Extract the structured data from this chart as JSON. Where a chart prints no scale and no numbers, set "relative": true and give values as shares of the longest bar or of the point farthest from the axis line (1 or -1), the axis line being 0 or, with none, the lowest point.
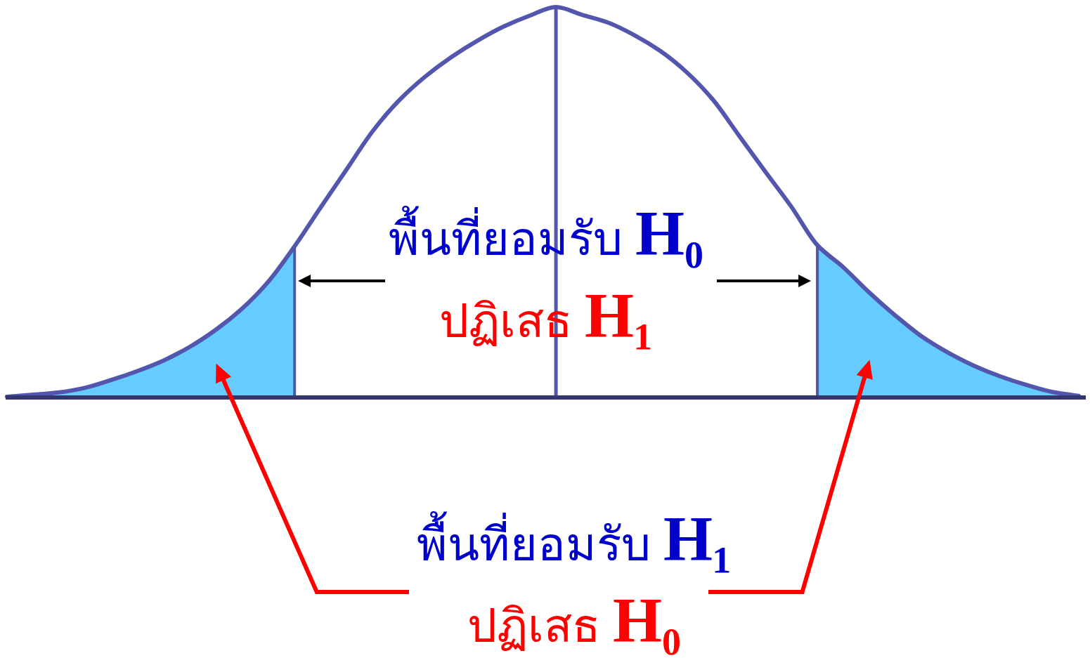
{
  "chart_data": {
    "type": "line",
    "relative": true,
    "categories": [
      null,
      null,
      null,
      null,
      null,
      null,
      null,
      null,
      null,
      null,
      null,
      null,
      null,
      null,
      null,
      null,
      null,
      null,
      null,
      null,
      null,
      null,
      null,
      null,
      null,
      null,
      null,
      null,
      null,
      null,
      null,
      null,
      null,
      null,
      null,
      null,
      null,
      null,
      null,
      null,
      null,
      null
    ],
    "series": [
      {
        "color": "#5356ad",
        "values": [
          0.002,
          0.007,
          0.013,
          0.025,
          0.045,
          0.068,
          0.095,
          0.13,
          0.174,
          0.228,
          0.297,
          0.387,
          0.487,
          0.585,
          0.683,
          0.761,
          0.822,
          0.872,
          0.914,
          0.95,
          0.978,
          1,
          0.98,
          0.96,
          0.928,
          0.887,
          0.833,
          0.763,
          0.671,
          0.579,
          0.489,
          0.39,
          0.333,
          0.268,
          0.209,
          0.156,
          0.115,
          0.081,
          0.054,
          0.032,
          0.014,
          0.004
        ]
      },
      {
        "type": "area",
        "color": "#66ccff",
        "values": [
          0.002,
          0.007,
          0.013,
          0.025,
          0.045,
          0.068,
          0.095,
          0.13,
          0.174,
          0.228,
          0.297,
          0.387,
          null,
          null,
          null,
          null,
          null,
          null,
          null,
          null,
          null,
          null,
          null,
          null,
          null,
          null,
          null,
          null,
          null,
          null,
          null,
          null,
          null,
          null,
          null,
          null,
          null,
          null,
          null,
          null,
          null,
          null
        ]
      },
      {
        "type": "area",
        "color": "#66ccff",
        "values": [
          null,
          null,
          null,
          null,
          null,
          null,
          null,
          null,
          null,
          null,
          null,
          null,
          null,
          null,
          null,
          null,
          null,
          null,
          null,
          null,
          null,
          null,
          null,
          null,
          null,
          null,
          null,
          null,
          null,
          null,
          null,
          0.39,
          0.333,
          0.268,
          0.209,
          0.156,
          0.115,
          0.081,
          0.054,
          0.032,
          0.014,
          0.004
        ]
      }
    ],
    "annotations": [
      "พื้นที่ยอมรับ H₀",
      "ปฏิเสธ H₁",
      "พื้นที่ยอมรับ H₁",
      "ปฏิเสธ H₀"
    ]
  }
}
